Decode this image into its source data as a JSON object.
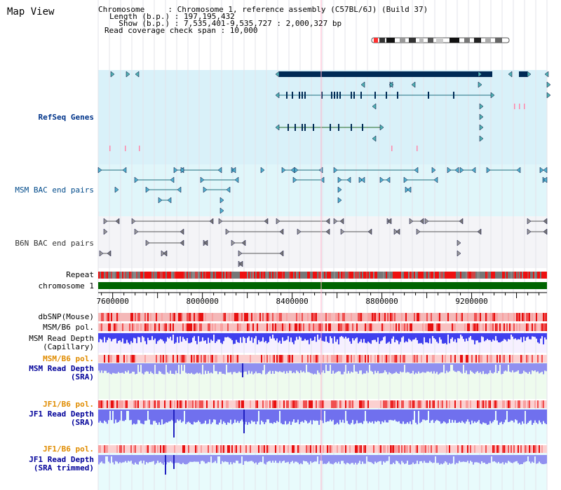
{
  "title": "Map View",
  "info": {
    "chromosome": "Chromosome     : Chromosome 1, reference assembly (C57BL/6J) (Build 37)",
    "length": "Length (b.p.) : 197,195,432",
    "show": "  Show (b.p.) : 7,535,401-9,535,727 : 2,000,327 bp",
    "span": "Read coverage check span : 10,000"
  },
  "axis": {
    "start": 7535401,
    "end": 9535727,
    "ticks": [
      7600000,
      8000000,
      8400000,
      8800000,
      9200000
    ],
    "tick_labels": [
      "7600000",
      "8000000",
      "8400000",
      "8800000",
      "9200000"
    ]
  },
  "tracks": {
    "refseq": "RefSeq Genes",
    "msm_bac": "MSM BAC end pairs",
    "b6n_bac": "B6N BAC end pairs",
    "repeat": "Repeat",
    "chromosome": "chromosome 1",
    "dbsnp": "dbSNP(Mouse)",
    "msm_pol": "MSM/B6 pol.",
    "msm_depth_cap_1": "MSM Read Depth",
    "msm_depth_cap_2": "(Capillary)",
    "msm_pol_sra": "MSM/B6 pol.",
    "msm_depth_sra_1": "MSM Read Depth",
    "msm_depth_sra_2": "(SRA)",
    "jf1_pol_1": "JF1/B6 pol.",
    "jf1_depth_1": "JF1 Read Depth",
    "jf1_depth_1b": "(SRA)",
    "jf1_pol_2": "JF1/B6 pol.",
    "jf1_depth_2": "JF1 Read Depth",
    "jf1_depth_2b": "(SRA trimmed)"
  },
  "colors": {
    "refseq_bg": "#d9f1f9",
    "msm_bg": "#e0f6fa",
    "b6n_bg": "#f4f4f7",
    "gene": "#1f6f7f",
    "gene_dark": "#002a55",
    "msm_label": "#004a8a",
    "refseq_label": "#00348a",
    "orange_label": "#e08c00",
    "depth_label": "#000099",
    "chromosome_bar": "#006400",
    "gray_label": "#333333",
    "blue_depth": "#4040ee",
    "light_depth": "#9090f0",
    "pol_red": "#ee2020"
  }
}
